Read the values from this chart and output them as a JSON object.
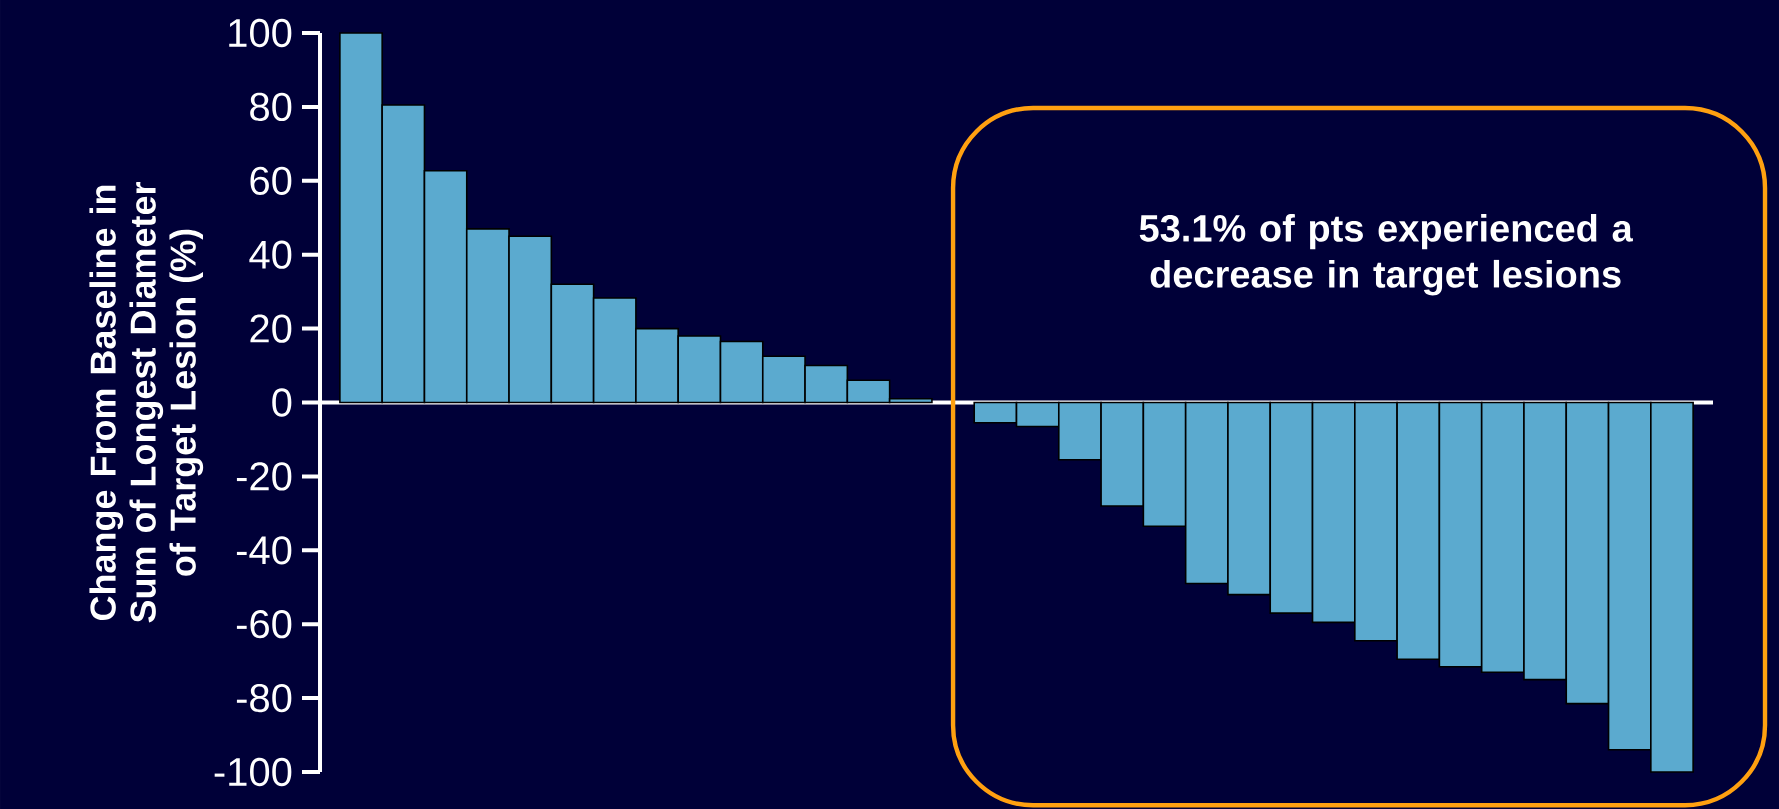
{
  "chart_data": {
    "type": "bar",
    "ylabel": "Change From Baseline in Sum of Longest Diameter of Target Lesion (%)",
    "categories": [
      null,
      null,
      null,
      null,
      null,
      null,
      null,
      null,
      null,
      null,
      null,
      null,
      null,
      null,
      null,
      null,
      null,
      null,
      null,
      null,
      null,
      null,
      null,
      null,
      null,
      null,
      null,
      null,
      null,
      null,
      null,
      null
    ],
    "values": [
      100,
      80.5,
      62.7,
      47,
      45,
      32,
      28.3,
      20,
      18,
      16.5,
      12.5,
      10,
      6,
      1,
      0,
      -5.5,
      -6.5,
      -15.5,
      -28,
      -33.5,
      -49,
      -52,
      -57,
      -59.5,
      -64.5,
      -69.5,
      -71.5,
      -73,
      -75,
      -81.5,
      -94,
      -100
    ],
    "color": "#5baacf",
    "ylim": [
      -100,
      100
    ],
    "yticks": [
      -100,
      -80,
      -60,
      -40,
      -20,
      0,
      20,
      40,
      60,
      80,
      100
    ],
    "annotations": [
      "53.1% of pts experienced a decrease in target lesions"
    ]
  }
}
